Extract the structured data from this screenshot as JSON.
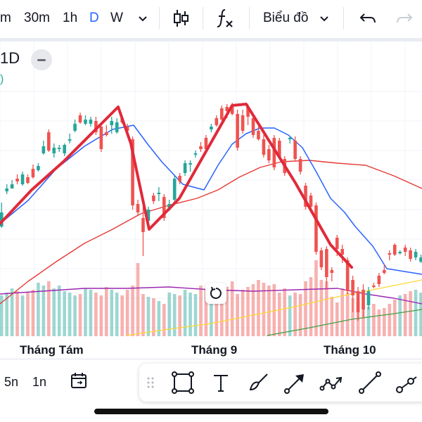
{
  "toolbar": {
    "intervals": [
      {
        "label": "m",
        "active": false
      },
      {
        "label": "30m",
        "active": false
      },
      {
        "label": "1h",
        "active": false
      },
      {
        "label": "D",
        "active": true
      },
      {
        "label": "W",
        "active": false
      }
    ],
    "chart_type_label": "Biểu đồ"
  },
  "legend": {
    "timeframe": "1D",
    "value_text": ")"
  },
  "xaxis": {
    "labels": [
      "Tháng Tám",
      "Tháng 9",
      "Tháng 10"
    ]
  },
  "bottom": {
    "ranges": [
      "5n",
      "1n"
    ]
  },
  "colors": {
    "up": "#26a69a",
    "down": "#ef5350",
    "accent": "#2962ff",
    "ma_blue": "#2962ff",
    "ma_red": "#e53935",
    "ma_purple": "#9c27b0",
    "ma_yellow": "#fdd835",
    "ma_green": "#43a047",
    "trend": "#e02a3a"
  },
  "chart_data": {
    "type": "candlestick",
    "candles": [
      [
        322,
        302,
        288,
        324
      ],
      [
        272,
        268,
        262,
        276
      ],
      [
        268,
        262,
        256,
        268
      ],
      [
        254,
        258,
        248,
        262
      ],
      [
        262,
        248,
        244,
        264
      ],
      [
        252,
        260,
        248,
        262
      ],
      [
        240,
        252,
        234,
        254
      ],
      [
        242,
        236,
        232,
        244
      ],
      [
        218,
        208,
        200,
        220
      ],
      [
        188,
        214,
        184,
        216
      ],
      [
        218,
        210,
        204,
        224
      ],
      [
        212,
        210,
        206,
        216
      ],
      [
        218,
        206,
        204,
        222
      ],
      [
        200,
        198,
        190,
        204
      ],
      [
        186,
        176,
        170,
        188
      ],
      [
        164,
        174,
        160,
        176
      ],
      [
        176,
        170,
        164,
        178
      ],
      [
        176,
        170,
        166,
        180
      ],
      [
        172,
        188,
        166,
        192
      ],
      [
        180,
        212,
        174,
        216
      ],
      [
        188,
        192,
        178,
        194
      ],
      [
        178,
        172,
        166,
        190
      ],
      [
        188,
        174,
        168,
        190
      ],
      [
        168,
        174,
        164,
        176
      ],
      [
        180,
        186,
        176,
        188
      ],
      [
        198,
        292,
        194,
        298
      ],
      [
        290,
        302,
        284,
        306
      ],
      [
        310,
        330,
        294,
        364
      ],
      [
        314,
        298,
        294,
        318
      ],
      [
        278,
        286,
        274,
        290
      ],
      [
        276,
        274,
        266,
        286
      ],
      [
        280,
        310,
        276,
        314
      ],
      [
        298,
        290,
        284,
        300
      ],
      [
        284,
        254,
        250,
        288
      ],
      [
        250,
        258,
        246,
        262
      ],
      [
        246,
        232,
        228,
        250
      ],
      [
        234,
        232,
        228,
        244
      ],
      [
        220,
        218,
        214,
        224
      ],
      [
        208,
        212,
        202,
        216
      ],
      [
        196,
        212,
        192,
        216
      ],
      [
        184,
        180,
        176,
        188
      ],
      [
        168,
        178,
        164,
        180
      ],
      [
        154,
        170,
        150,
        172
      ],
      [
        152,
        158,
        148,
        168
      ],
      [
        152,
        162,
        146,
        164
      ],
      [
        162,
        210,
        156,
        214
      ],
      [
        164,
        186,
        156,
        190
      ],
      [
        152,
        166,
        148,
        178
      ],
      [
        168,
        192,
        162,
        196
      ],
      [
        186,
        198,
        180,
        200
      ],
      [
        198,
        220,
        192,
        224
      ],
      [
        212,
        228,
        206,
        232
      ],
      [
        196,
        238,
        192,
        242
      ],
      [
        200,
        224,
        196,
        226
      ],
      [
        226,
        246,
        222,
        250
      ],
      [
        198,
        196,
        194,
        204
      ],
      [
        200,
        226,
        194,
        228
      ],
      [
        226,
        244,
        222,
        248
      ],
      [
        264,
        294,
        260,
        298
      ],
      [
        278,
        294,
        274,
        302
      ],
      [
        292,
        358,
        288,
        362
      ],
      [
        356,
        380,
        352,
        384
      ],
      [
        354,
        394,
        350,
        412
      ],
      [
        384,
        388,
        380,
        400
      ],
      [
        338,
        354,
        334,
        364
      ],
      [
        354,
        362,
        348,
        374
      ],
      [
        370,
        414,
        366,
        418
      ],
      [
        398,
        420,
        392,
        444
      ],
      [
        414,
        444,
        408,
        456
      ],
      [
        412,
        440,
        404,
        452
      ],
      [
        434,
        414,
        408,
        440
      ],
      [
        406,
        406,
        402,
        410
      ],
      [
        392,
        404,
        388,
        408
      ],
      [
        384,
        388,
        376,
        390
      ],
      [
        360,
        360,
        356,
        370
      ],
      [
        348,
        362,
        346,
        364
      ],
      [
        360,
        358,
        356,
        362
      ],
      [
        352,
        358,
        348,
        364
      ],
      [
        356,
        368,
        352,
        372
      ],
      [
        366,
        358,
        354,
        370
      ],
      [
        372,
        366,
        362,
        374
      ]
    ],
    "volumes": [
      420,
      416,
      410,
      414,
      420,
      416,
      412,
      402,
      406,
      400,
      410,
      406,
      414,
      416,
      420,
      418,
      410,
      412,
      416,
      420,
      408,
      412,
      416,
      420,
      412,
      406,
      374,
      418,
      422,
      424,
      428,
      432,
      416,
      418,
      420,
      412,
      416,
      418,
      406,
      412,
      410,
      408,
      402,
      408,
      400,
      418,
      412,
      408,
      404,
      398,
      402,
      406,
      404,
      416,
      410,
      420,
      416,
      418,
      400,
      394,
      370,
      398,
      400,
      422,
      430,
      410,
      416,
      424,
      428,
      432,
      436,
      432,
      440,
      438,
      432,
      426,
      420,
      418,
      414,
      412,
      416
    ],
    "ma_blue": [
      [
        0,
        318
      ],
      [
        40,
        285
      ],
      [
        80,
        240
      ],
      [
        120,
        208
      ],
      [
        160,
        184
      ],
      [
        190,
        178
      ],
      [
        210,
        205
      ],
      [
        230,
        230
      ],
      [
        260,
        262
      ],
      [
        290,
        270
      ],
      [
        310,
        235
      ],
      [
        330,
        205
      ],
      [
        350,
        190
      ],
      [
        370,
        182
      ],
      [
        390,
        182
      ],
      [
        410,
        192
      ],
      [
        430,
        210
      ],
      [
        450,
        245
      ],
      [
        470,
        282
      ],
      [
        490,
        302
      ],
      [
        505,
        322
      ],
      [
        530,
        350
      ],
      [
        550,
        382
      ],
      [
        575,
        386
      ],
      [
        600,
        390
      ]
    ],
    "ma_red": [
      [
        0,
        432
      ],
      [
        40,
        400
      ],
      [
        80,
        372
      ],
      [
        120,
        346
      ],
      [
        160,
        326
      ],
      [
        200,
        304
      ],
      [
        240,
        292
      ],
      [
        280,
        282
      ],
      [
        310,
        270
      ],
      [
        340,
        252
      ],
      [
        370,
        238
      ],
      [
        400,
        230
      ],
      [
        440,
        228
      ],
      [
        480,
        232
      ],
      [
        520,
        235
      ],
      [
        560,
        250
      ],
      [
        600,
        268
      ]
    ],
    "ma_purple": [
      [
        0,
        418
      ],
      [
        60,
        414
      ],
      [
        120,
        410
      ],
      [
        180,
        410
      ],
      [
        240,
        408
      ],
      [
        300,
        412
      ],
      [
        360,
        414
      ],
      [
        420,
        412
      ],
      [
        480,
        410
      ],
      [
        520,
        418
      ],
      [
        560,
        424
      ],
      [
        600,
        432
      ]
    ],
    "ma_yellow": [
      [
        180,
        477
      ],
      [
        240,
        468
      ],
      [
        300,
        460
      ],
      [
        360,
        448
      ],
      [
        420,
        436
      ],
      [
        470,
        424
      ],
      [
        520,
        414
      ],
      [
        560,
        406
      ],
      [
        600,
        398
      ]
    ],
    "ma_green": [
      [
        380,
        477
      ],
      [
        440,
        466
      ],
      [
        500,
        454
      ],
      [
        560,
        446
      ],
      [
        600,
        440
      ]
    ],
    "trend": [
      [
        0,
        318
      ],
      [
        45,
        270
      ],
      [
        90,
        230
      ],
      [
        130,
        190
      ],
      [
        168,
        152
      ],
      [
        186,
        204
      ],
      [
        212,
        326
      ],
      [
        255,
        282
      ],
      [
        330,
        150
      ],
      [
        350,
        148
      ],
      [
        420,
        260
      ],
      [
        470,
        348
      ],
      [
        500,
        380
      ]
    ]
  }
}
